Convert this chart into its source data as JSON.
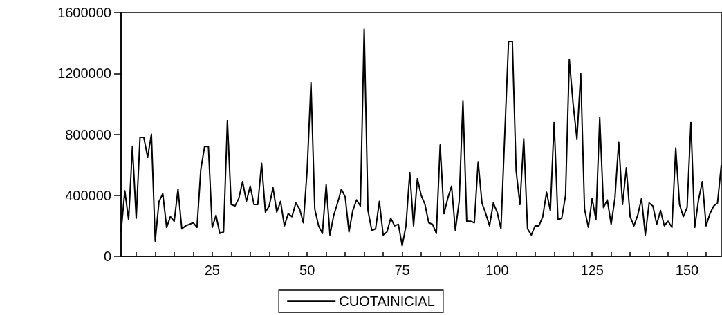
{
  "chart_data": {
    "type": "line",
    "xlim": [
      1,
      159
    ],
    "x": [
      1,
      2,
      3,
      4,
      5,
      6,
      7,
      8,
      9,
      10,
      11,
      12,
      13,
      14,
      15,
      16,
      17,
      18,
      19,
      20,
      21,
      22,
      23,
      24,
      25,
      26,
      27,
      28,
      29,
      30,
      31,
      32,
      33,
      34,
      35,
      36,
      37,
      38,
      39,
      40,
      41,
      42,
      43,
      44,
      45,
      46,
      47,
      48,
      49,
      50,
      51,
      52,
      53,
      54,
      55,
      56,
      57,
      58,
      59,
      60,
      61,
      62,
      63,
      64,
      65,
      66,
      67,
      68,
      69,
      70,
      71,
      72,
      73,
      74,
      75,
      76,
      77,
      78,
      79,
      80,
      81,
      82,
      83,
      84,
      85,
      86,
      87,
      88,
      89,
      90,
      91,
      92,
      93,
      94,
      95,
      96,
      97,
      98,
      99,
      100,
      101,
      102,
      103,
      104,
      105,
      106,
      107,
      108,
      109,
      110,
      111,
      112,
      113,
      114,
      115,
      116,
      117,
      118,
      119,
      120,
      121,
      122,
      123,
      124,
      125,
      126,
      127,
      128,
      129,
      130,
      131,
      132,
      133,
      134,
      135,
      136,
      137,
      138,
      139,
      140,
      141,
      142,
      143,
      144,
      145,
      146,
      147,
      148,
      149,
      150,
      151,
      152,
      153,
      154,
      155,
      156,
      157,
      158,
      159
    ],
    "xticks": [
      {
        "value": 5,
        "label": null
      },
      {
        "value": 10,
        "label": null
      },
      {
        "value": 15,
        "label": null
      },
      {
        "value": 20,
        "label": null
      },
      25,
      {
        "value": 30,
        "label": null
      },
      {
        "value": 35,
        "label": null
      },
      {
        "value": 40,
        "label": null
      },
      {
        "value": 45,
        "label": null
      },
      50,
      {
        "value": 55,
        "label": null
      },
      {
        "value": 60,
        "label": null
      },
      {
        "value": 65,
        "label": null
      },
      {
        "value": 70,
        "label": null
      },
      75,
      {
        "value": 80,
        "label": null
      },
      {
        "value": 85,
        "label": null
      },
      {
        "value": 90,
        "label": null
      },
      {
        "value": 95,
        "label": null
      },
      100,
      {
        "value": 105,
        "label": null
      },
      {
        "value": 110,
        "label": null
      },
      {
        "value": 115,
        "label": null
      },
      {
        "value": 120,
        "label": null
      },
      125,
      {
        "value": 130,
        "label": null
      },
      {
        "value": 135,
        "label": null
      },
      {
        "value": 140,
        "label": null
      },
      {
        "value": 145,
        "label": null
      },
      150,
      {
        "value": 155,
        "label": null
      }
    ],
    "ylim": [
      0,
      1600000
    ],
    "yticks": [
      0,
      400000,
      800000,
      1200000,
      1600000
    ],
    "grid": false,
    "legend": "bottom",
    "marker": "none",
    "line_style": "solid",
    "series": [
      {
        "name": "CUOTAINICIAL",
        "color": "#000000",
        "values": [
          160000,
          430000,
          240000,
          720000,
          250000,
          780000,
          780000,
          650000,
          800000,
          100000,
          360000,
          410000,
          190000,
          260000,
          230000,
          440000,
          180000,
          200000,
          210000,
          220000,
          190000,
          570000,
          720000,
          720000,
          190000,
          270000,
          150000,
          160000,
          890000,
          340000,
          330000,
          380000,
          490000,
          360000,
          460000,
          340000,
          340000,
          610000,
          290000,
          330000,
          450000,
          290000,
          360000,
          200000,
          280000,
          260000,
          350000,
          310000,
          220000,
          570000,
          1140000,
          310000,
          200000,
          150000,
          470000,
          140000,
          270000,
          350000,
          440000,
          390000,
          160000,
          300000,
          370000,
          330000,
          1490000,
          300000,
          170000,
          180000,
          360000,
          140000,
          160000,
          250000,
          200000,
          210000,
          70000,
          200000,
          550000,
          200000,
          510000,
          400000,
          340000,
          220000,
          210000,
          150000,
          730000,
          280000,
          380000,
          460000,
          170000,
          360000,
          1020000,
          230000,
          230000,
          220000,
          620000,
          350000,
          280000,
          200000,
          350000,
          290000,
          180000,
          800000,
          1410000,
          1410000,
          560000,
          340000,
          770000,
          180000,
          140000,
          200000,
          200000,
          260000,
          420000,
          300000,
          880000,
          240000,
          250000,
          400000,
          1290000,
          1000000,
          770000,
          1200000,
          310000,
          190000,
          380000,
          240000,
          910000,
          320000,
          370000,
          210000,
          380000,
          750000,
          340000,
          580000,
          260000,
          200000,
          270000,
          380000,
          140000,
          350000,
          330000,
          210000,
          300000,
          200000,
          230000,
          190000,
          710000,
          340000,
          260000,
          320000,
          880000,
          190000,
          370000,
          490000,
          200000,
          280000,
          330000,
          350000,
          600000
        ]
      }
    ]
  }
}
